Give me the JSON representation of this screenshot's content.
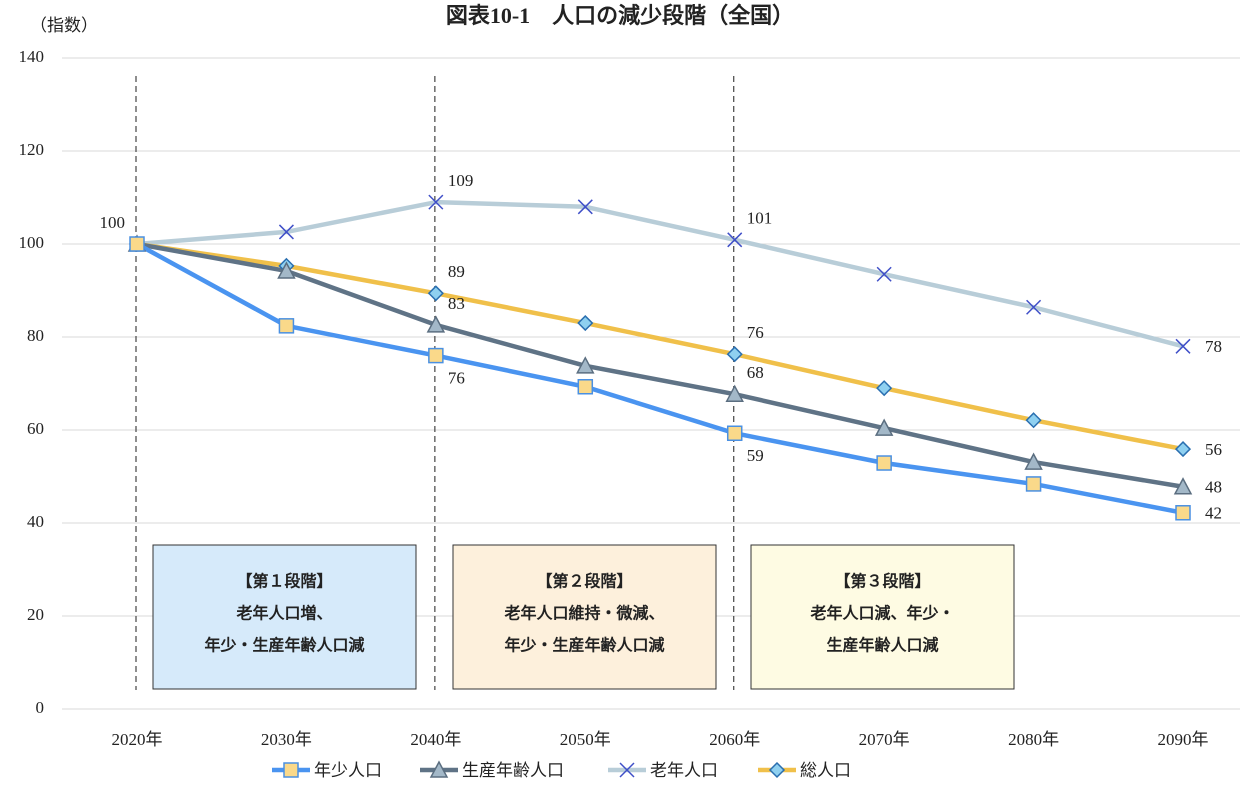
{
  "chart_data": {
    "type": "line",
    "title": "図表10-1　人口の減少段階（全国）",
    "y_label": "（指数）",
    "categories": [
      "2020年",
      "2030年",
      "2040年",
      "2050年",
      "2060年",
      "2070年",
      "2080年",
      "2090年"
    ],
    "series": [
      {
        "name": "年少人口",
        "color": "#4a94f0",
        "marker": "square",
        "marker_fill": "#fad98a",
        "marker_stroke": "#4a90e2",
        "values": [
          100,
          82.4,
          76,
          69.3,
          59.3,
          52.9,
          48.4,
          42.2
        ],
        "value_labels": [
          null,
          null,
          "76",
          null,
          "59",
          null,
          null,
          "42"
        ]
      },
      {
        "name": "生産年齢人口",
        "color": "#5f7386",
        "marker": "triangle",
        "marker_fill": "#a3b8c8",
        "marker_stroke": "#5b6e80",
        "values": [
          100,
          94.2,
          82.6,
          73.8,
          67.7,
          60.4,
          53.1,
          47.8
        ],
        "value_labels": [
          null,
          null,
          "83",
          null,
          "68",
          null,
          null,
          "48"
        ]
      },
      {
        "name": "老年人口",
        "color": "#b8cdd8",
        "marker": "x",
        "marker_fill": "none",
        "marker_stroke": "#3f4fc8",
        "values": [
          100,
          102.6,
          109,
          108,
          100.9,
          93.5,
          86.4,
          78
        ],
        "value_labels": [
          "100",
          null,
          "109",
          null,
          "101",
          null,
          null,
          "78"
        ]
      },
      {
        "name": "総人口",
        "color": "#f0c04a",
        "marker": "diamond",
        "marker_fill": "#8fd0f0",
        "marker_stroke": "#2a6fb0",
        "values": [
          100,
          95.3,
          89.4,
          83,
          76.3,
          69,
          62.1,
          55.9
        ],
        "value_labels": [
          null,
          null,
          "89",
          null,
          "76",
          null,
          null,
          "56"
        ]
      }
    ],
    "ylim": [
      0,
      140
    ],
    "yticks": [
      0,
      20,
      40,
      60,
      80,
      100,
      120,
      140
    ],
    "grid": true,
    "annotations": [
      {
        "lines": [
          "【第１段階】",
          "老年人口増、",
          "年少・生産年齢人口減"
        ],
        "color": "#d6eafa"
      },
      {
        "lines": [
          "【第２段階】",
          "老年人口維持・微減、",
          "年少・生産年齢人口減"
        ],
        "color": "#fdf0dc"
      },
      {
        "lines": [
          "【第３段階】",
          "老年人口減、年少・",
          "生産年齢人口減"
        ],
        "color": "#fefbe3"
      }
    ],
    "legend": "bottom"
  }
}
